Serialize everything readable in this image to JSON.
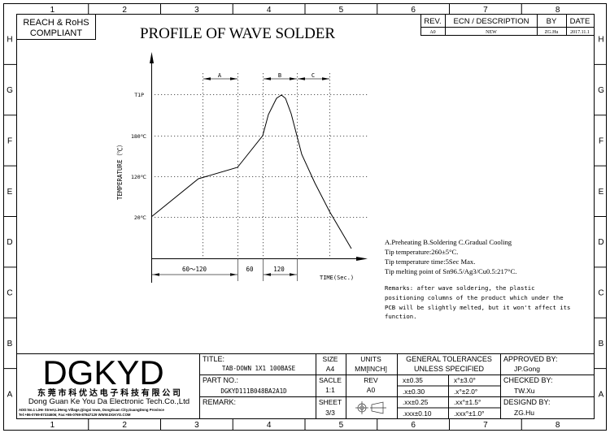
{
  "drawing": {
    "title": "PROFILE OF WAVE SOLDER",
    "compliance": [
      "REACH & RoHS",
      "COMPLIANT"
    ],
    "column_markers": [
      "1",
      "2",
      "3",
      "4",
      "5",
      "6",
      "7",
      "8"
    ],
    "row_markers": [
      "H",
      "G",
      "F",
      "E",
      "D",
      "C",
      "B",
      "A"
    ]
  },
  "revision_table": {
    "headers": [
      "REV.",
      "ECN / DESCRIPTION",
      "BY",
      "DATE"
    ],
    "rows": [
      [
        "A0",
        "NEW",
        "ZG.Hu",
        "2017.11.1"
      ]
    ]
  },
  "profile": {
    "y_axis_label": "TEMPERATURE（℃）",
    "x_axis_label": "TIME(Sec.)",
    "y_ticks": [
      "T1P",
      "180℃",
      "120℃",
      "20℃"
    ],
    "zones": [
      "A",
      "B",
      "C"
    ],
    "durations": [
      "60～120",
      "60",
      "120"
    ]
  },
  "notes": [
    "A.Preheating  B.Soldering  C.Gradual Cooling",
    "Tip temperature:260±5°C.",
    "Tip temperature time:5Sec Max.",
    "Tip melting point of Sn96.5/Ag3/Cu0.5:217°C."
  ],
  "remarks": [
    "Remarks: after wave soldering, the plastic",
    "positioning columns of the product  which under the",
    "PCB will be slightly melted, but it won't affect its",
    "function."
  ],
  "company": {
    "logo": "DGKYD",
    "name_cn": "东 莞 市 科 优 达 电 子 科 技 有 限 公 司",
    "name_en": "Dong Guan Ke You Da Electronic Tech.Co.,Ltd",
    "address": "ADD:No.1 LiHe Street,LiHeng Village,Qingxi town, DongGuan City,GuangDong Province",
    "contact": "Tel:+86-0769-87334606; Fax:+86-0769-87847129  WWW.DGKYD.COM"
  },
  "title_block": {
    "title_label": "TITLE:",
    "title_value": "TAB-DOWN 1X1 100BASE",
    "part_no_label": "PART NO.:",
    "part_no_value": "DGKYD111B048BA2A1D",
    "remark_label": "REMARK:",
    "size_label": "SIZE",
    "size_value": "A4",
    "units_label": "UNITS",
    "units_value": "MM[INCH]",
    "scale_label": "SACLE",
    "scale_value": "1:1",
    "rev_label": "REV",
    "rev_value": "A0",
    "sheet_label": "SHEET",
    "sheet_value": "3/3",
    "tolerances_title": [
      "GENERAL TOLERANCES",
      "UNLESS SPECIFIED"
    ],
    "tolerances": [
      [
        "x±0.35",
        "x°±3.0°"
      ],
      [
        ".x±0.30",
        ".x°±2.0°"
      ],
      [
        ".xx±0.25",
        ".xx°±1.5°"
      ],
      [
        ".xxx±0.10",
        ".xxx°±1.0°"
      ]
    ],
    "approved_by_label": "APPROVED BY:",
    "approved_by": "JP.Gong",
    "checked_by_label": "CHECKED BY:",
    "checked_by": "TW.Xu",
    "designed_by_label": "DESIGND BY:",
    "designed_by": "ZG.Hu"
  }
}
